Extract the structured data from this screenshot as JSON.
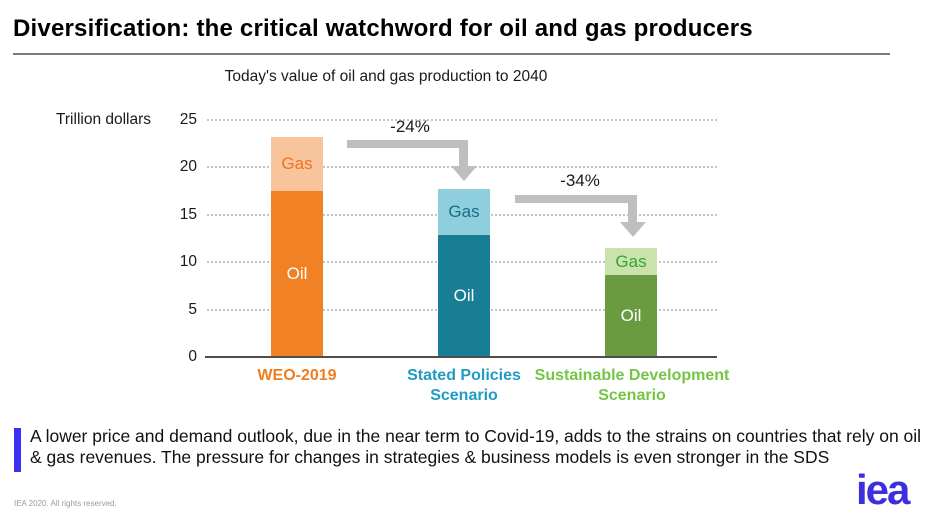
{
  "header": {
    "title": "Diversification: the critical watchword for oil and gas producers"
  },
  "chart_data": {
    "type": "bar",
    "stacked": true,
    "title": "Today's value of oil and gas production to 2040",
    "ylabel": "Trillion dollars",
    "ylim": [
      0,
      25
    ],
    "y_ticks": [
      25,
      20,
      15,
      10,
      5,
      0
    ],
    "grid": "horizontal-dotted",
    "categories": [
      "WEO-2019",
      "Stated Policies Scenario",
      "Sustainable Development Scenario"
    ],
    "series": [
      {
        "name": "Oil",
        "values": [
          17.5,
          12.9,
          8.6
        ]
      },
      {
        "name": "Gas",
        "values": [
          5.7,
          4.8,
          2.9
        ]
      }
    ],
    "totals": [
      23.2,
      17.7,
      11.5
    ],
    "annotations": [
      {
        "text": "-24%",
        "from": "WEO-2019",
        "to": "Stated Policies Scenario"
      },
      {
        "text": "-34%",
        "from": "Stated Policies Scenario",
        "to": "Sustainable Development Scenario"
      }
    ],
    "legend": "none (Oil/Gas labels inside bar segments)"
  },
  "style": {
    "bars": [
      {
        "oil_color": "#F08125",
        "gas_color": "#F8C49B",
        "gas_text_color": "#ED7420",
        "oil_text_color": "#FFFFFF",
        "label_color": "#F07D1F"
      },
      {
        "oil_color": "#187E95",
        "gas_color": "#8FCEDC",
        "gas_text_color": "#156F87",
        "oil_text_color": "#FFFFFF",
        "label_color": "#209BC4"
      },
      {
        "oil_color": "#6A9B41",
        "gas_color": "#CAE2AC",
        "gas_text_color": "#33A637",
        "oil_text_color": "#FFFFFF",
        "label_color": "#74C446"
      }
    ],
    "arrow_color": "#BFBFBF",
    "grid_color": "#C4C4C4",
    "axis_color": "#4D4D4D",
    "accent_bar_color": "#3B2FF0",
    "logo_color": "#3B2FE0"
  },
  "callout": {
    "text": "A lower price and demand outlook, due in the near term to Covid-19, adds to the strains on countries that rely on oil & gas revenues.  The pressure for changes in strategies & business models is even stronger in the SDS"
  },
  "footer": {
    "copyright": "IEA 2020. All rights reserved.",
    "logo_text": "iea"
  }
}
